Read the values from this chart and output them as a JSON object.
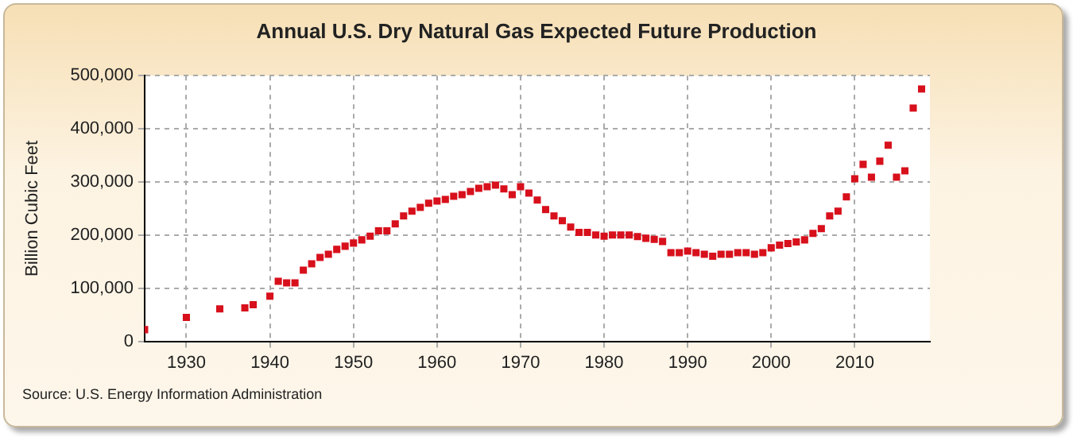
{
  "chart_data": {
    "type": "scatter",
    "title": "Annual U.S. Dry Natural Gas Expected Future Production",
    "ylabel": "Billion Cubic Feet",
    "annotations": [
      "Source: U.S. Energy Information Administration"
    ],
    "x": [
      1925,
      1930,
      1934,
      1937,
      1938,
      1940,
      1941,
      1942,
      1943,
      1944,
      1945,
      1946,
      1947,
      1948,
      1949,
      1950,
      1951,
      1952,
      1953,
      1954,
      1955,
      1956,
      1957,
      1958,
      1959,
      1960,
      1961,
      1962,
      1963,
      1964,
      1965,
      1966,
      1967,
      1968,
      1969,
      1970,
      1971,
      1972,
      1973,
      1974,
      1975,
      1976,
      1977,
      1978,
      1979,
      1980,
      1981,
      1982,
      1983,
      1984,
      1985,
      1986,
      1987,
      1988,
      1989,
      1990,
      1991,
      1992,
      1993,
      1994,
      1995,
      1996,
      1997,
      1998,
      1999,
      2000,
      2001,
      2002,
      2003,
      2004,
      2005,
      2006,
      2007,
      2008,
      2009,
      2010,
      2011,
      2012,
      2013,
      2014,
      2015,
      2016,
      2017,
      2018
    ],
    "series": [
      {
        "color": "#d7101c",
        "values": [
          22000,
          45000,
          61000,
          63000,
          69000,
          85000,
          113000,
          110000,
          110000,
          134000,
          146000,
          158000,
          164000,
          173000,
          179000,
          185000,
          191000,
          198000,
          208000,
          208000,
          221000,
          236000,
          245000,
          252000,
          260000,
          264000,
          267000,
          273000,
          276000,
          282000,
          288000,
          291000,
          294000,
          287000,
          276000,
          291000,
          279000,
          266000,
          248000,
          236000,
          227000,
          215000,
          205000,
          205000,
          200000,
          198000,
          200000,
          200000,
          200000,
          197000,
          194000,
          192000,
          188000,
          167000,
          167000,
          170000,
          167000,
          164000,
          160000,
          164000,
          164000,
          167000,
          167000,
          164000,
          167000,
          176000,
          181000,
          184000,
          187000,
          191000,
          203000,
          212000,
          236000,
          245000,
          272000,
          306000,
          333000,
          309000,
          339000,
          369000,
          309000,
          321000,
          439000,
          475000
        ]
      }
    ],
    "xlim": [
      1925,
      2019
    ],
    "xticks": [
      1930,
      1940,
      1950,
      1960,
      1970,
      1980,
      1990,
      2000,
      2010
    ],
    "ylim": [
      0,
      500000
    ],
    "yticks": [
      0,
      {
        "value": 100000,
        "label": "100,000"
      },
      {
        "value": 200000,
        "label": "200,000"
      },
      {
        "value": 300000,
        "label": "300,000"
      },
      {
        "value": 400000,
        "label": "400,000"
      },
      {
        "value": 500000,
        "label": "500,000"
      }
    ],
    "grid": true,
    "legend": false,
    "marker": "square"
  }
}
